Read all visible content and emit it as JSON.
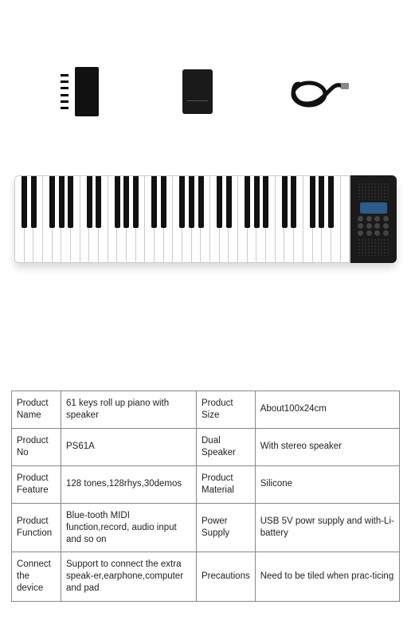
{
  "accessories": {
    "remote": "control-module",
    "battery": "battery-pack",
    "cable": "usb-cable"
  },
  "piano": {
    "white_key_count": 36,
    "black_pattern": [
      1,
      1,
      0,
      1,
      1,
      1,
      0
    ],
    "unit_color": "#1a1a1a",
    "lcd_color": "#2b5c8a"
  },
  "spec_table": {
    "border_color": "#888888",
    "font_size": 11.5,
    "text_color": "#222222",
    "rows": [
      {
        "l1": "Product Name",
        "v1": "61 keys roll up piano with speaker",
        "l2": "Product Size",
        "v2": "About100x24cm"
      },
      {
        "l1": "Product No",
        "v1": "PS61A",
        "l2": "Dual Speaker",
        "v2": "With stereo speaker"
      },
      {
        "l1": "Product Feature",
        "v1": "128 tones,128rhys,30demos",
        "l2": "Product Material",
        "v2": "Silicone"
      },
      {
        "l1": "Product Function",
        "v1": "Blue-tooth MIDI function,record, audio input and so on",
        "l2": "Power Supply",
        "v2": "USB 5V powr supply and with-Li-battery"
      },
      {
        "l1": "Connect the device",
        "v1": "Support to connect the extra speak-er,earphone,computer and pad",
        "l2": "Precautions",
        "v2": "Need to be tiled when prac-ticing"
      }
    ]
  }
}
